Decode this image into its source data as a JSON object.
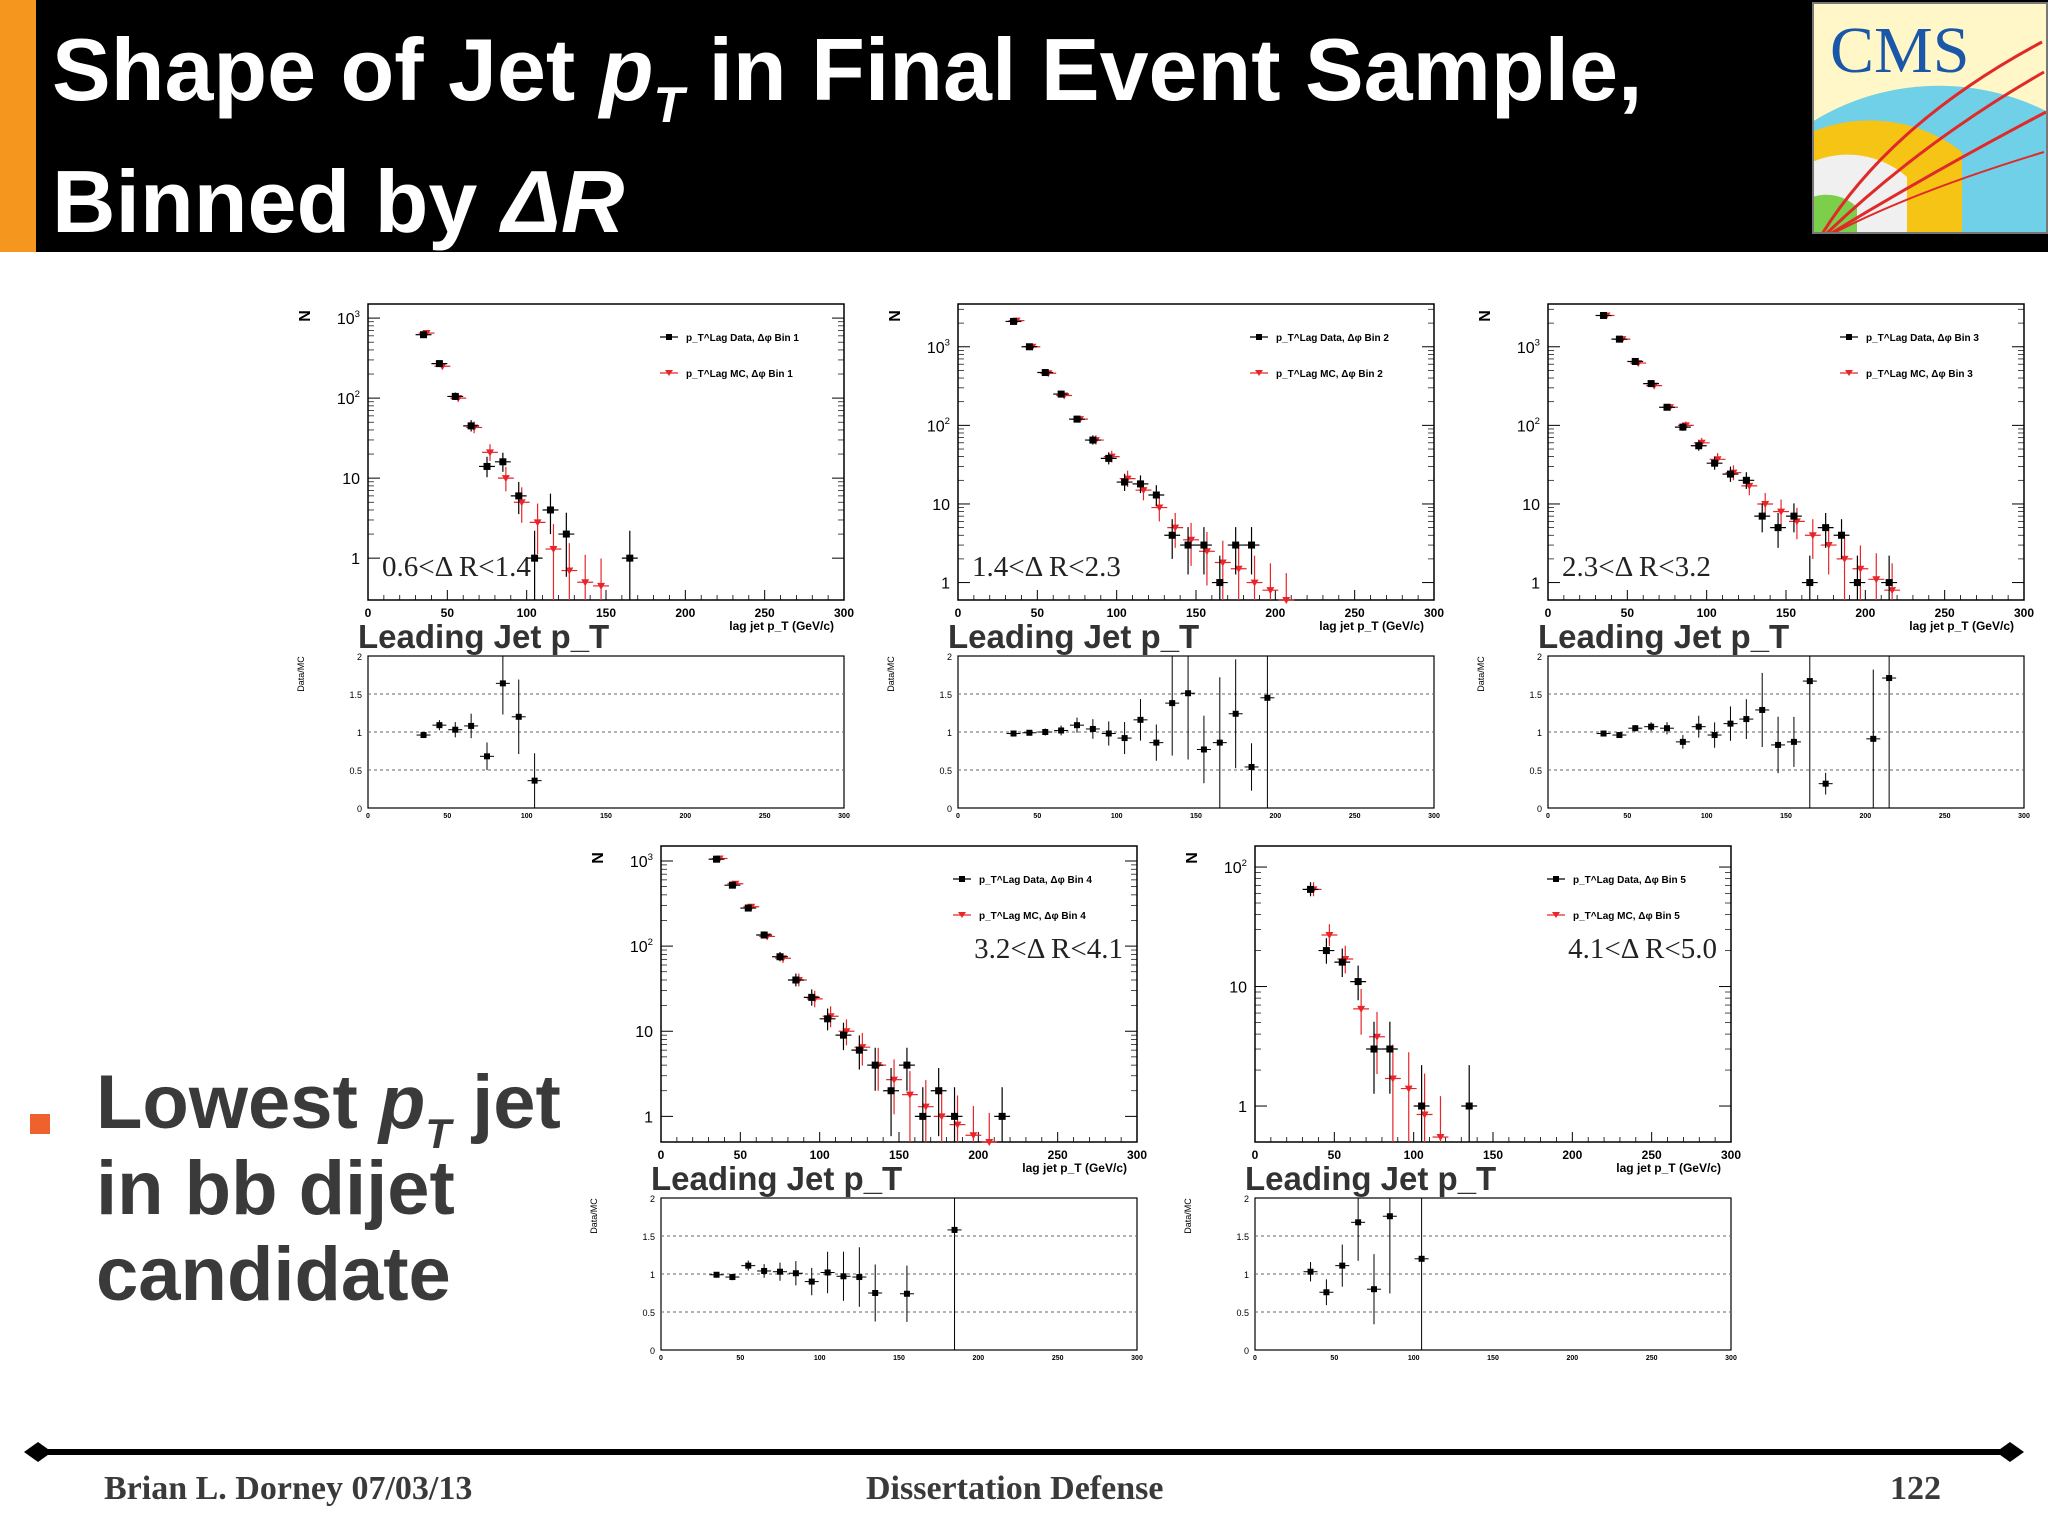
{
  "slide": {
    "title_part1": "Shape of Jet ",
    "title_pt_p": "p",
    "title_pt_sub": "T",
    "title_part2": " in Final Event Sample,",
    "title_line2_text": "Binned by ",
    "title_line2_var": "ΔR",
    "logo_text": "CMS",
    "bullet": {
      "text1": "Lowest ",
      "var_p": "p",
      "var_sub": "T",
      "text2": " jet",
      "line2": "in bb dijet",
      "line3": "candidate"
    },
    "footer": {
      "left": "Brian L. Dorney 07/03/13",
      "center": "Dissertation Defense",
      "page": "122"
    },
    "colors": {
      "accent": "#f5961e",
      "bullet": "#f0622d",
      "data": "#000000",
      "mc": "#e8262a"
    }
  },
  "chart_data": [
    {
      "type": "scatter",
      "ylabel": "N",
      "xlabel": "lag jet p_T (GeV/c)",
      "xlim": [
        0,
        300
      ],
      "ylim": [
        0.3,
        1500
      ],
      "yscale": "log",
      "yticks": [
        "1",
        "10",
        "10²",
        "10³"
      ],
      "bin_label": "0.6<Δ R<1.4",
      "legend": [
        "p_T^Lag Data, Δφ Bin 1",
        "p_T^Lag MC, Δφ Bin 1"
      ],
      "caption": "Leading Jet p_T",
      "ratio_ylabel": "Data/MC",
      "x": [
        35,
        45,
        55,
        65,
        75,
        85,
        95,
        105,
        115,
        125,
        135,
        145,
        165
      ],
      "series": [
        {
          "name": "Data",
          "values": [
            620,
            270,
            105,
            45,
            14,
            16,
            6,
            1,
            4,
            2,
            0,
            0,
            1
          ]
        },
        {
          "name": "MC",
          "values": [
            650,
            250,
            100,
            43,
            21,
            10,
            5,
            2.8,
            1.3,
            0.7,
            0.5,
            0.45,
            0
          ]
        }
      ],
      "ratio": [
        0.96,
        1.09,
        1.03,
        1.08,
        0.68,
        1.64,
        1.2,
        0.36
      ]
    },
    {
      "type": "scatter",
      "ylabel": "N",
      "xlabel": "lag jet p_T (GeV/c)",
      "xlim": [
        0,
        300
      ],
      "ylim": [
        0.6,
        3500
      ],
      "yscale": "log",
      "yticks": [
        "1",
        "10",
        "10²",
        "10³"
      ],
      "bin_label": "1.4<Δ R<2.3",
      "legend": [
        "p_T^Lag Data, Δφ Bin 2",
        "p_T^Lag MC, Δφ Bin 2"
      ],
      "caption": "Leading Jet p_T",
      "ratio_ylabel": "Data/MC",
      "x": [
        35,
        45,
        55,
        65,
        75,
        85,
        95,
        105,
        115,
        125,
        135,
        145,
        155,
        165,
        175,
        185,
        195,
        205
      ],
      "series": [
        {
          "name": "Data",
          "values": [
            2100,
            1000,
            470,
            250,
            120,
            65,
            38,
            19,
            18,
            13,
            4,
            3,
            3,
            1,
            3,
            3,
            0,
            0
          ]
        },
        {
          "name": "MC",
          "values": [
            2150,
            1000,
            460,
            240,
            120,
            65,
            40,
            21,
            15,
            9,
            5,
            3.5,
            2.5,
            1.8,
            1.5,
            1,
            0.8,
            0.6
          ]
        }
      ],
      "ratio": [
        0.98,
        0.99,
        1.0,
        1.02,
        1.09,
        1.04,
        0.98,
        0.92,
        1.16,
        0.86,
        1.38,
        1.51,
        0.77,
        0.86,
        1.24,
        0.54,
        1.45
      ]
    },
    {
      "type": "scatter",
      "ylabel": "N",
      "xlabel": "lag jet p_T (GeV/c)",
      "xlim": [
        0,
        300
      ],
      "ylim": [
        0.6,
        3500
      ],
      "yscale": "log",
      "yticks": [
        "1",
        "10",
        "10²",
        "10³"
      ],
      "bin_label": "2.3<Δ R<3.2",
      "legend": [
        "p_T^Lag Data, Δφ Bin 3",
        "p_T^Lag MC, Δφ Bin 3"
      ],
      "caption": "Leading Jet p_T",
      "ratio_ylabel": "Data/MC",
      "x": [
        35,
        45,
        55,
        65,
        75,
        85,
        95,
        105,
        115,
        125,
        135,
        145,
        155,
        165,
        175,
        185,
        195,
        205,
        215
      ],
      "series": [
        {
          "name": "Data",
          "values": [
            2500,
            1250,
            650,
            340,
            170,
            95,
            55,
            33,
            24,
            20,
            7,
            5,
            7,
            1,
            5,
            4,
            1,
            0,
            1
          ]
        },
        {
          "name": "MC",
          "values": [
            2500,
            1250,
            620,
            320,
            170,
            100,
            60,
            37,
            25,
            17,
            10,
            8,
            6,
            4,
            3,
            2,
            1.5,
            1.1,
            0.8
          ]
        }
      ],
      "ratio": [
        0.98,
        0.96,
        1.05,
        1.07,
        1.05,
        0.87,
        1.07,
        0.96,
        1.11,
        1.17,
        1.29,
        0.83,
        0.87,
        1.67,
        0.32,
        0,
        0,
        0.91,
        1.71
      ]
    },
    {
      "type": "scatter",
      "ylabel": "N",
      "xlabel": "lag jet p_T (GeV/c)",
      "xlim": [
        0,
        300
      ],
      "ylim": [
        0.5,
        1500
      ],
      "yscale": "log",
      "yticks": [
        "1",
        "10",
        "10²",
        "10³"
      ],
      "bin_label": "3.2<Δ R<4.1",
      "legend": [
        "p_T^Lag Data, Δφ Bin 4",
        "p_T^Lag MC, Δφ Bin 4"
      ],
      "caption": "Leading Jet p_T",
      "ratio_ylabel": "Data/MC",
      "x": [
        35,
        45,
        55,
        65,
        75,
        85,
        95,
        105,
        115,
        125,
        135,
        145,
        155,
        165,
        175,
        185,
        195,
        205,
        215
      ],
      "series": [
        {
          "name": "Data",
          "values": [
            1050,
            520,
            280,
            135,
            75,
            40,
            25,
            14,
            9,
            6,
            4,
            2,
            4,
            1,
            2,
            1,
            0,
            0,
            1
          ]
        },
        {
          "name": "MC",
          "values": [
            1070,
            540,
            290,
            130,
            72,
            40,
            24,
            15,
            10,
            6.5,
            4,
            2.7,
            1.8,
            1.3,
            1,
            0.8,
            0.6,
            0.5,
            0
          ]
        }
      ],
      "ratio": [
        0.99,
        0.96,
        1.11,
        1.04,
        1.03,
        1.01,
        0.9,
        1.02,
        0.97,
        0.96,
        0.75,
        0,
        0.74,
        0,
        0,
        1.58
      ]
    },
    {
      "type": "scatter",
      "ylabel": "N",
      "xlabel": "lag jet p_T (GeV/c)",
      "xlim": [
        0,
        300
      ],
      "ylim": [
        0.5,
        150
      ],
      "yscale": "log",
      "yticks": [
        "1",
        "10",
        "10²"
      ],
      "bin_label": "4.1<Δ R<5.0",
      "legend": [
        "p_T^Lag Data, Δφ Bin 5",
        "p_T^Lag MC, Δφ Bin 5"
      ],
      "caption": "Leading Jet p_T",
      "ratio_ylabel": "Data/MC",
      "x": [
        35,
        45,
        55,
        65,
        75,
        85,
        95,
        105,
        115,
        135
      ],
      "series": [
        {
          "name": "Data",
          "values": [
            65,
            20,
            16,
            11,
            3,
            3,
            0,
            1,
            0,
            1
          ]
        },
        {
          "name": "MC",
          "values": [
            65,
            27,
            17,
            6.5,
            3.8,
            1.7,
            1.4,
            0.85,
            0.55,
            0
          ]
        }
      ],
      "ratio": [
        1.03,
        0.76,
        1.11,
        1.68,
        0.8,
        1.76,
        0,
        1.2
      ]
    }
  ]
}
